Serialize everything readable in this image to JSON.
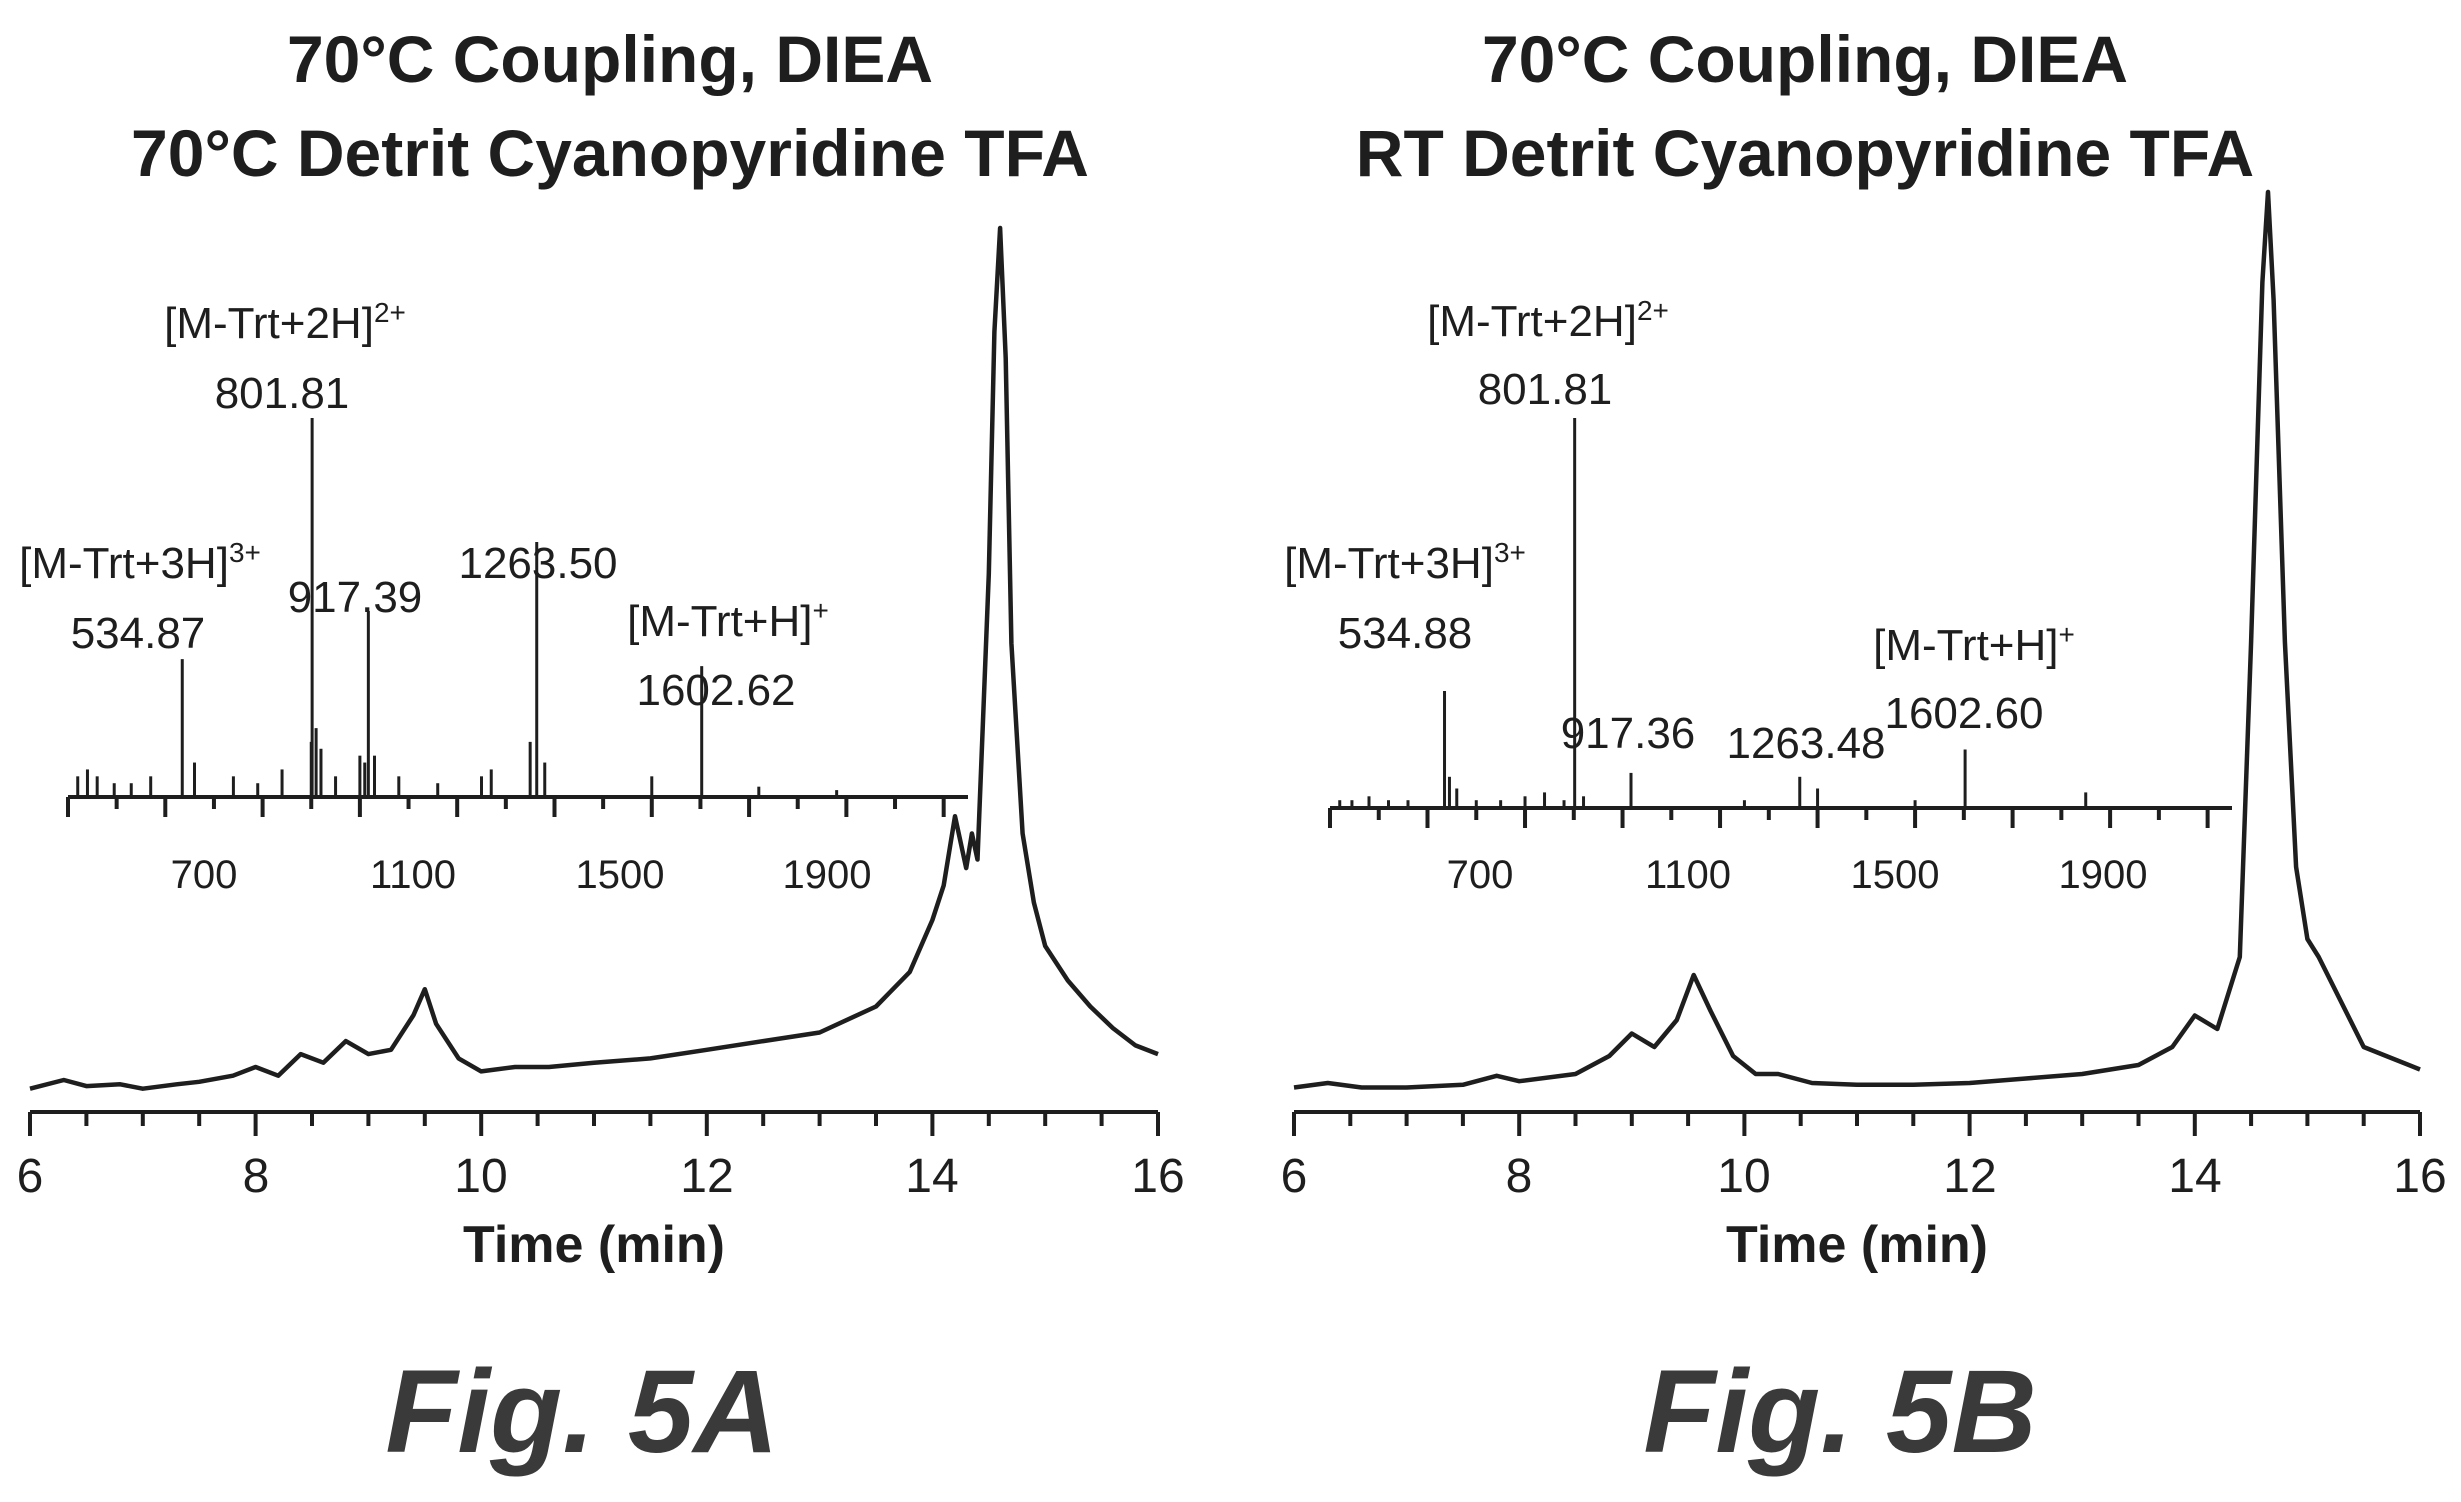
{
  "chart_data": [
    {
      "type": "line",
      "panel": "Fig. 5A",
      "title_lines": [
        "70°C Coupling, DIEA",
        "70°C Detrit Cyanopyridine TFA"
      ],
      "xlabel": "Time (min)",
      "xlim": [
        6,
        16
      ],
      "x_ticks": [
        "6",
        "8",
        "10",
        "12",
        "14",
        "16"
      ],
      "chromatogram": {
        "x": [
          6.0,
          6.3,
          6.5,
          6.8,
          7.0,
          7.3,
          7.5,
          7.8,
          8.0,
          8.2,
          8.4,
          8.6,
          8.8,
          9.0,
          9.2,
          9.4,
          9.5,
          9.6,
          9.8,
          10.0,
          10.3,
          10.6,
          11.0,
          11.5,
          12.0,
          12.5,
          13.0,
          13.5,
          13.8,
          14.0,
          14.1,
          14.2,
          14.3,
          14.35,
          14.4,
          14.5,
          14.55,
          14.6,
          14.65,
          14.7,
          14.8,
          14.9,
          15.0,
          15.2,
          15.4,
          15.6,
          15.8,
          16.0
        ],
        "y": [
          0.5,
          1.5,
          0.8,
          1.0,
          0.5,
          1.0,
          1.3,
          2.0,
          3.0,
          2.0,
          4.5,
          3.5,
          6.0,
          4.5,
          5.0,
          9.0,
          12.0,
          8.0,
          4.0,
          2.5,
          3.0,
          3.0,
          3.5,
          4.0,
          5.0,
          6.0,
          7.0,
          10.0,
          14.0,
          20.0,
          24.0,
          32.0,
          26.0,
          30.0,
          27.0,
          60.0,
          88.0,
          100.0,
          85.0,
          52.0,
          30.0,
          22.0,
          17.0,
          13.0,
          10.0,
          7.5,
          5.5,
          4.5
        ]
      },
      "inset": {
        "type": "bar",
        "xlim": [
          300,
          2150
        ],
        "x_ticks": [
          "700",
          "1100",
          "1500",
          "1900"
        ],
        "peaks_mz": [
          320,
          340,
          360,
          395,
          430,
          470,
          534.87,
          560,
          640,
          690,
          740,
          800,
          801.81,
          810,
          820,
          850,
          900,
          910,
          917.39,
          930,
          980,
          1060,
          1150,
          1170,
          1250,
          1263.5,
          1280,
          1500,
          1602.62,
          1720,
          1880
        ],
        "peaks_intensity": [
          3,
          4,
          3,
          2,
          2,
          3,
          20,
          5,
          3,
          2,
          4,
          8,
          55,
          10,
          7,
          3,
          6,
          5,
          27,
          6,
          3,
          2,
          3,
          4,
          8,
          37,
          5,
          3,
          19,
          1.5,
          1
        ],
        "annotations": [
          {
            "line1": "[M-Trt+3H]",
            "sup": "3+",
            "value": "534.87"
          },
          {
            "line1": "[M-Trt+2H]",
            "sup": "2+",
            "value": "801.81"
          },
          {
            "value": "917.39"
          },
          {
            "value": "1263.50"
          },
          {
            "line1": "[M-Trt+H]",
            "sup": "+",
            "value": "1602.62"
          }
        ]
      }
    },
    {
      "type": "line",
      "panel": "Fig. 5B",
      "title_lines": [
        "70°C Coupling, DIEA",
        "RT Detrit Cyanopyridine TFA"
      ],
      "xlabel": "Time (min)",
      "xlim": [
        6,
        16
      ],
      "x_ticks": [
        "6",
        "8",
        "10",
        "12",
        "14",
        "16"
      ],
      "chromatogram": {
        "x": [
          6.0,
          6.3,
          6.6,
          7.0,
          7.5,
          7.8,
          8.0,
          8.5,
          8.8,
          9.0,
          9.2,
          9.4,
          9.55,
          9.7,
          9.9,
          10.1,
          10.3,
          10.6,
          11.0,
          11.5,
          12.0,
          12.5,
          13.0,
          13.5,
          13.8,
          14.0,
          14.2,
          14.4,
          14.5,
          14.6,
          14.65,
          14.7,
          14.8,
          14.9,
          15.0,
          15.1,
          15.3,
          15.5,
          15.7,
          16.0
        ],
        "y": [
          0.5,
          1.0,
          0.5,
          0.5,
          0.8,
          1.8,
          1.2,
          2.0,
          4.0,
          6.5,
          5.0,
          8.0,
          13.0,
          9.0,
          4.0,
          2.0,
          2.0,
          1.0,
          0.8,
          0.8,
          1.0,
          1.5,
          2.0,
          3.0,
          5.0,
          8.5,
          7.0,
          15.0,
          50.0,
          90.0,
          100.0,
          88.0,
          50.0,
          25.0,
          17.0,
          15.0,
          10.0,
          5.0,
          4.0,
          2.5
        ]
      },
      "inset": {
        "type": "bar",
        "xlim": [
          300,
          2150
        ],
        "x_ticks": [
          "700",
          "1100",
          "1500",
          "1900"
        ],
        "peaks_mz": [
          320,
          345,
          380,
          420,
          460,
          534.88,
          545,
          560,
          600,
          650,
          700,
          740,
          780,
          801.81,
          820,
          917.36,
          1150,
          1263.48,
          1300,
          1500,
          1602.6,
          1850
        ],
        "peaks_intensity": [
          2,
          2,
          3,
          2,
          2,
          30,
          8,
          5,
          2,
          2,
          3,
          4,
          2,
          100,
          3,
          9,
          2,
          8,
          5,
          2,
          15,
          4
        ],
        "annotations": [
          {
            "line1": "[M-Trt+3H]",
            "sup": "3+",
            "value": "534.88"
          },
          {
            "line1": "[M-Trt+2H]",
            "sup": "2+",
            "value": "801.81"
          },
          {
            "value": "917.36"
          },
          {
            "value": "1263.48"
          },
          {
            "line1": "[M-Trt+H]",
            "sup": "+",
            "value": "1602.60"
          }
        ]
      }
    }
  ],
  "figure_labels": [
    "Fig. 5A",
    "Fig. 5B"
  ]
}
